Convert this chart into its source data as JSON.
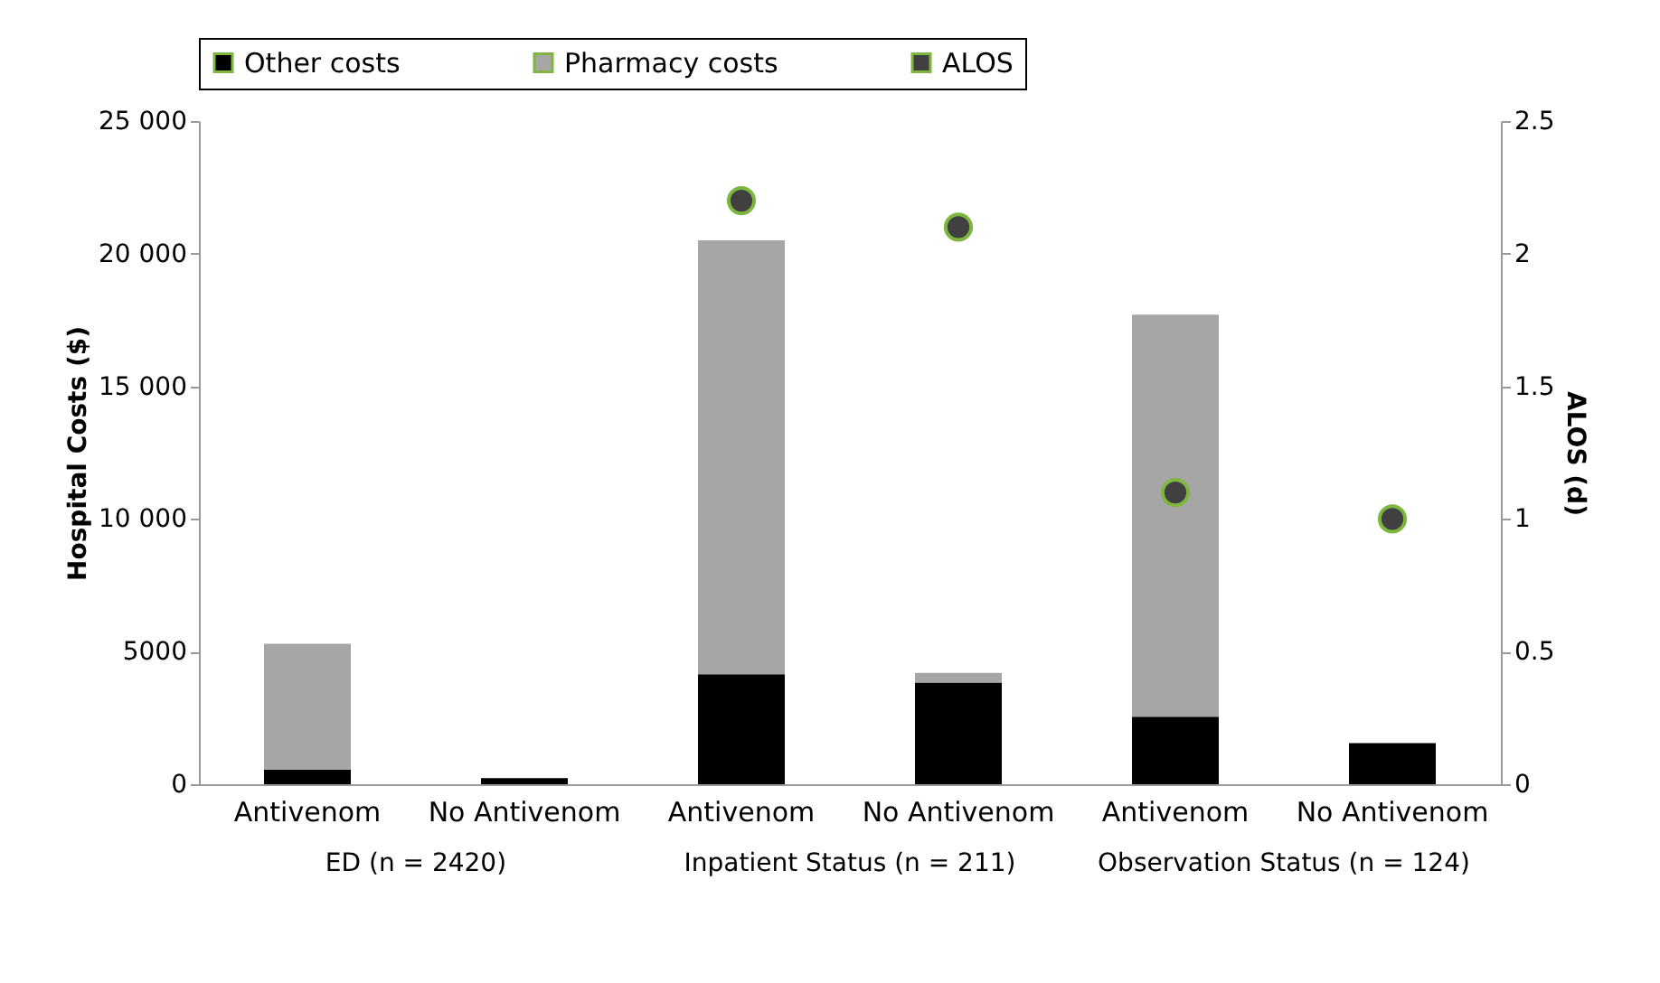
{
  "chart_data": {
    "type": "bar",
    "stacked": true,
    "ylabel": "Hospital Costs ($)",
    "y2label": "ALOS (d)",
    "categories": [
      "Antivenom",
      "No Antivenom",
      "Antivenom",
      "No Antivenom",
      "Antivenom",
      "No Antivenom"
    ],
    "series": [
      {
        "name": "Other costs",
        "color": "#000000",
        "values": [
          550,
          230,
          4150,
          3830,
          2550,
          1550
        ]
      },
      {
        "name": "Pharmacy costs",
        "color": "#a6a6a6",
        "values": [
          4750,
          null,
          16350,
          370,
          15150,
          null
        ]
      },
      {
        "name": "ALOS",
        "color": "#404040",
        "type": "scatter",
        "axis": "y2",
        "values": [
          null,
          null,
          2.2,
          2.1,
          1.1,
          1.0
        ]
      }
    ],
    "ylim": [
      0,
      25000
    ],
    "yticks": [
      0,
      {
        "value": 5000,
        "label": "5000"
      },
      {
        "value": 10000,
        "label": "10 000"
      },
      {
        "value": 15000,
        "label": "15 000"
      },
      {
        "value": 20000,
        "label": "20 000"
      },
      {
        "value": 25000,
        "label": "25 000"
      }
    ],
    "y2lim": [
      0,
      2.5
    ],
    "y2ticks": [
      0,
      0.5,
      1,
      1.5,
      2,
      2.5
    ],
    "grid": false,
    "legend": "top",
    "marker": "circle",
    "annotations": [
      "ED (n = 2420)",
      "Inpatient Status (n = 211)",
      "Observation Status (n = 124)"
    ]
  }
}
